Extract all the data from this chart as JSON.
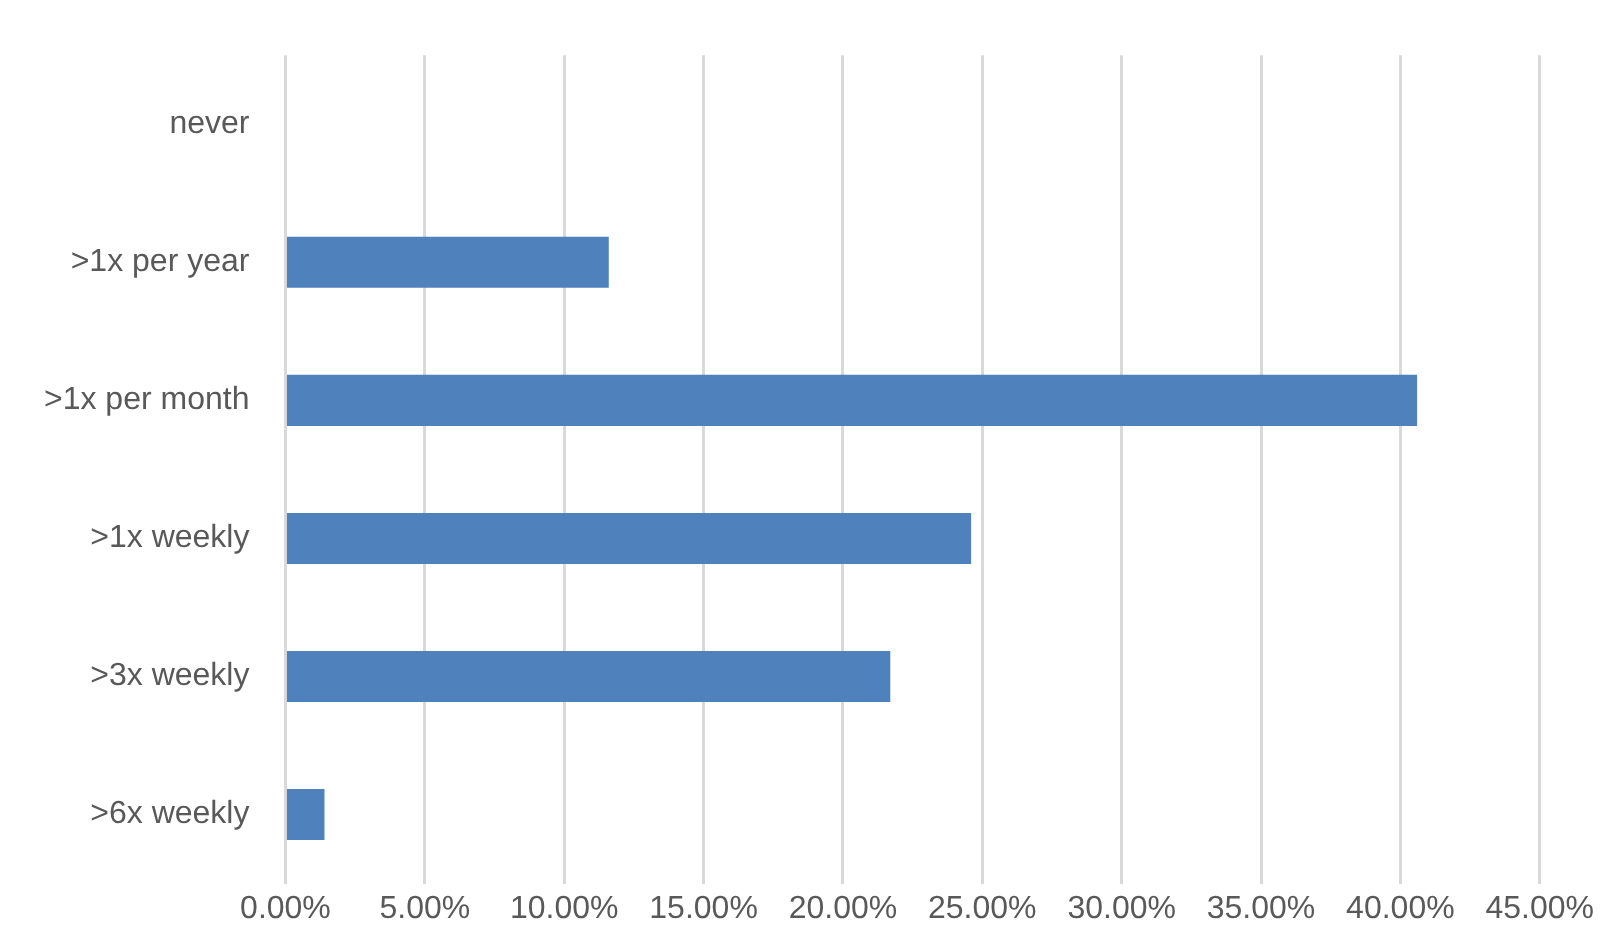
{
  "chart_data": {
    "type": "bar",
    "orientation": "horizontal",
    "categories": [
      "never",
      ">1x per year",
      ">1x per month",
      ">1x weekly",
      ">3x weekly",
      ">6x weekly"
    ],
    "values": [
      0,
      11.6,
      40.6,
      24.6,
      21.7,
      1.4
    ],
    "color": "#4f81bd",
    "xlim": [
      0,
      45
    ],
    "xticks": [
      {
        "value": 0,
        "label": "0.00%"
      },
      {
        "value": 5,
        "label": "5.00%"
      },
      {
        "value": 10,
        "label": "10.00%"
      },
      {
        "value": 15,
        "label": "15.00%"
      },
      {
        "value": 20,
        "label": "20.00%"
      },
      {
        "value": 25,
        "label": "25.00%"
      },
      {
        "value": 30,
        "label": "30.00%"
      },
      {
        "value": 35,
        "label": "35.00%"
      },
      {
        "value": 40,
        "label": "40.00%"
      },
      {
        "value": 45,
        "label": "45.00%"
      }
    ],
    "grid": "x"
  }
}
